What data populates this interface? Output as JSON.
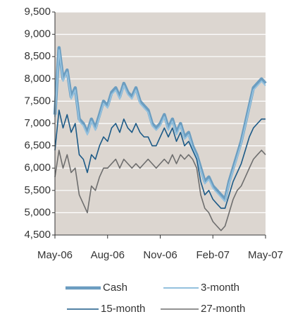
{
  "chart_data": {
    "type": "line",
    "categories": [
      "May-06",
      null,
      null,
      null,
      null,
      null,
      null,
      null,
      null,
      null,
      null,
      null,
      null,
      "Aug-06",
      null,
      null,
      null,
      null,
      null,
      null,
      null,
      null,
      null,
      null,
      null,
      null,
      "Nov-06",
      null,
      null,
      null,
      null,
      null,
      null,
      null,
      null,
      null,
      null,
      null,
      null,
      "Feb-07",
      null,
      null,
      null,
      null,
      null,
      null,
      null,
      null,
      null,
      null,
      null,
      null,
      "May-07"
    ],
    "series": [
      {
        "name": "Cash",
        "color": "#6b9dc0",
        "values": [
          7200,
          8700,
          8000,
          8200,
          7600,
          7800,
          7100,
          7000,
          6800,
          7100,
          6900,
          7200,
          7500,
          7400,
          7700,
          7800,
          7600,
          7900,
          7700,
          7600,
          7800,
          7500,
          7400,
          7300,
          7000,
          6900,
          7000,
          7200,
          6900,
          7100,
          6800,
          7000,
          6700,
          6800,
          6500,
          6300,
          6000,
          5700,
          5800,
          5600,
          5500,
          5400,
          5300,
          5700,
          6000,
          6300,
          6600,
          7000,
          7400,
          7800,
          7900,
          8000,
          7900
        ]
      },
      {
        "name": "3-month",
        "color": "#94c1de",
        "values": [
          7150,
          8650,
          7950,
          8150,
          7550,
          7750,
          7050,
          6950,
          6750,
          7050,
          6850,
          7150,
          7450,
          7350,
          7650,
          7750,
          7550,
          7850,
          7650,
          7550,
          7750,
          7450,
          7350,
          7250,
          6950,
          6850,
          6950,
          7150,
          6850,
          7050,
          6750,
          6950,
          6650,
          6750,
          6450,
          6250,
          5950,
          5650,
          5750,
          5550,
          5450,
          5350,
          5250,
          5650,
          5950,
          6250,
          6550,
          6950,
          7350,
          7750,
          7850,
          7950,
          7850
        ]
      },
      {
        "name": "15-month",
        "color": "#1c5a87",
        "values": [
          6400,
          7300,
          6900,
          7200,
          6800,
          7000,
          6300,
          6200,
          5900,
          6300,
          6200,
          6500,
          6700,
          6600,
          6900,
          7000,
          6800,
          7100,
          6900,
          6800,
          7000,
          6800,
          6700,
          6700,
          6500,
          6500,
          6700,
          6900,
          6700,
          6900,
          6600,
          6800,
          6500,
          6600,
          6400,
          6200,
          5700,
          5400,
          5500,
          5300,
          5200,
          5100,
          5100,
          5400,
          5700,
          5900,
          6100,
          6400,
          6700,
          6900,
          7000,
          7100,
          7100
        ]
      },
      {
        "name": "27-month",
        "color": "#6e6e6e",
        "values": [
          5800,
          6400,
          6000,
          6300,
          5900,
          6000,
          5400,
          5200,
          5000,
          5600,
          5500,
          5800,
          6000,
          6000,
          6100,
          6200,
          6000,
          6200,
          6100,
          6000,
          6100,
          6000,
          6100,
          6200,
          6100,
          6000,
          6100,
          6200,
          6100,
          6300,
          6100,
          6300,
          6200,
          6300,
          6200,
          6000,
          5400,
          5100,
          5000,
          4800,
          4700,
          4600,
          4700,
          5000,
          5300,
          5500,
          5600,
          5800,
          6000,
          6200,
          6300,
          6400,
          6300
        ]
      }
    ],
    "ylim": [
      4500,
      9500
    ],
    "yticks": [
      {
        "value": 4500,
        "label": "4,500"
      },
      {
        "value": 5000,
        "label": "5,000"
      },
      {
        "value": 5500,
        "label": "5,500"
      },
      {
        "value": 6000,
        "label": "6,000"
      },
      {
        "value": 6500,
        "label": "6,500"
      },
      {
        "value": 7000,
        "label": "7,000"
      },
      {
        "value": 7500,
        "label": "7,500"
      },
      {
        "value": 8000,
        "label": "8,000"
      },
      {
        "value": 8500,
        "label": "8,500"
      },
      {
        "value": 9000,
        "label": "9,000"
      },
      {
        "value": 9500,
        "label": "9,500"
      }
    ],
    "grid": true
  }
}
